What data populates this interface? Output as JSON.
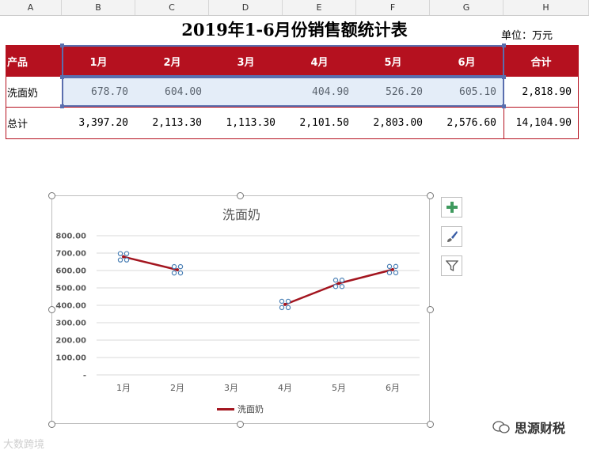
{
  "columns": [
    "A",
    "B",
    "C",
    "D",
    "E",
    "F",
    "G",
    "H"
  ],
  "sheet": {
    "title": "2019年1-6月份销售额统计表",
    "unit": "单位：万元",
    "header": [
      "产品",
      "1月",
      "2月",
      "3月",
      "4月",
      "5月",
      "6月",
      "合计"
    ],
    "rows": [
      {
        "product": "洗面奶",
        "values": [
          "678.70",
          "604.00",
          "",
          "404.90",
          "526.20",
          "605.10"
        ],
        "total": "2,818.90"
      },
      {
        "product": "总计",
        "values": [
          "3,397.20",
          "2,113.30",
          "1,113.30",
          "2,101.50",
          "2,803.00",
          "2,576.60"
        ],
        "total": "14,104.90"
      }
    ]
  },
  "chart_data": {
    "type": "line",
    "title": "洗面奶",
    "categories": [
      "1月",
      "2月",
      "3月",
      "4月",
      "5月",
      "6月"
    ],
    "series": [
      {
        "name": "洗面奶",
        "values": [
          678.7,
          604.0,
          null,
          404.9,
          526.2,
          605.1
        ]
      }
    ],
    "ylim": [
      0,
      800
    ],
    "yticks": [
      "-",
      "100.00",
      "200.00",
      "300.00",
      "400.00",
      "500.00",
      "600.00",
      "700.00",
      "800.00"
    ],
    "grid": true,
    "legend": "bottom",
    "line_color": "#a3151f"
  },
  "chart_tools": {
    "add_icon": "plus-icon",
    "style_icon": "brush-icon",
    "filter_icon": "filter-icon"
  },
  "watermark": {
    "left": "大数跨境",
    "right": "思源财税"
  }
}
